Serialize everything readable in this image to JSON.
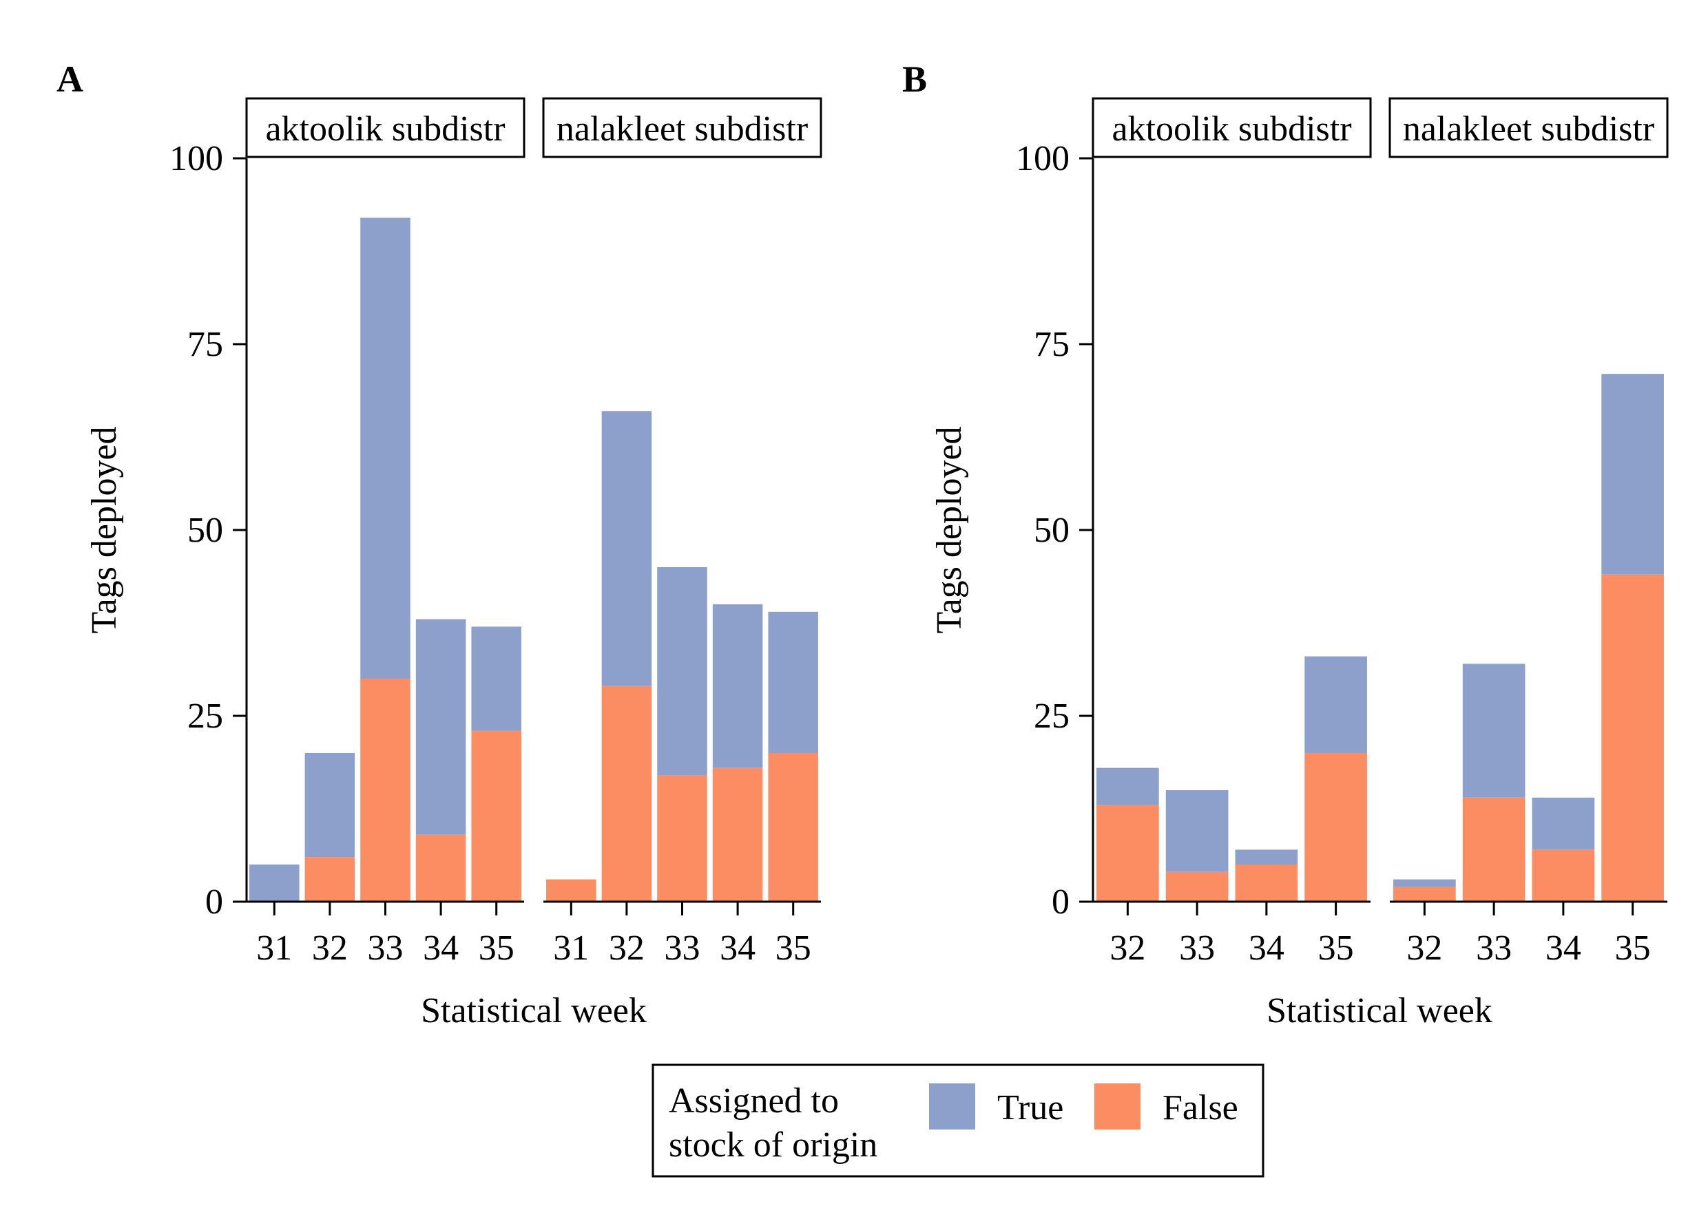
{
  "colors": {
    "true": "#8da0cb",
    "false": "#fc8d62",
    "axis": "#000000",
    "background": "#ffffff"
  },
  "legend": {
    "title_line1": "Assigned to",
    "title_line2": "stock of origin",
    "items": [
      {
        "label": "True",
        "color_key": "true"
      },
      {
        "label": "False",
        "color_key": "false"
      }
    ],
    "placement": "bottom-center"
  },
  "chart_data": [
    {
      "type": "bar",
      "stacked": true,
      "panel_label": "A",
      "xlabel": "Statistical week",
      "ylabel": "Tags deployed",
      "ylim": [
        0,
        100
      ],
      "yticks": [
        0,
        25,
        50,
        75,
        100
      ],
      "grid": false,
      "facets": [
        {
          "strip": "aktoolik subdistr",
          "categories": [
            "31",
            "32",
            "33",
            "34",
            "35"
          ],
          "series": [
            {
              "name": "False",
              "color_key": "false",
              "values": [
                0,
                6,
                30,
                9,
                23
              ]
            },
            {
              "name": "True",
              "color_key": "true",
              "values": [
                5,
                14,
                62,
                29,
                14
              ]
            }
          ]
        },
        {
          "strip": "nalakleet subdistr",
          "categories": [
            "31",
            "32",
            "33",
            "34",
            "35"
          ],
          "series": [
            {
              "name": "False",
              "color_key": "false",
              "values": [
                3,
                29,
                17,
                18,
                20
              ]
            },
            {
              "name": "True",
              "color_key": "true",
              "values": [
                0,
                37,
                28,
                22,
                19
              ]
            }
          ]
        }
      ]
    },
    {
      "type": "bar",
      "stacked": true,
      "panel_label": "B",
      "xlabel": "Statistical week",
      "ylabel": "Tags deployed",
      "ylim": [
        0,
        100
      ],
      "yticks": [
        0,
        25,
        50,
        75,
        100
      ],
      "grid": false,
      "facets": [
        {
          "strip": "aktoolik subdistr",
          "categories": [
            "32",
            "33",
            "34",
            "35"
          ],
          "series": [
            {
              "name": "False",
              "color_key": "false",
              "values": [
                13,
                4,
                5,
                20
              ]
            },
            {
              "name": "True",
              "color_key": "true",
              "values": [
                5,
                11,
                2,
                13
              ]
            }
          ]
        },
        {
          "strip": "nalakleet subdistr",
          "categories": [
            "32",
            "33",
            "34",
            "35"
          ],
          "series": [
            {
              "name": "False",
              "color_key": "false",
              "values": [
                2,
                14,
                7,
                44
              ]
            },
            {
              "name": "True",
              "color_key": "true",
              "values": [
                1,
                18,
                7,
                27
              ]
            }
          ]
        }
      ]
    }
  ]
}
